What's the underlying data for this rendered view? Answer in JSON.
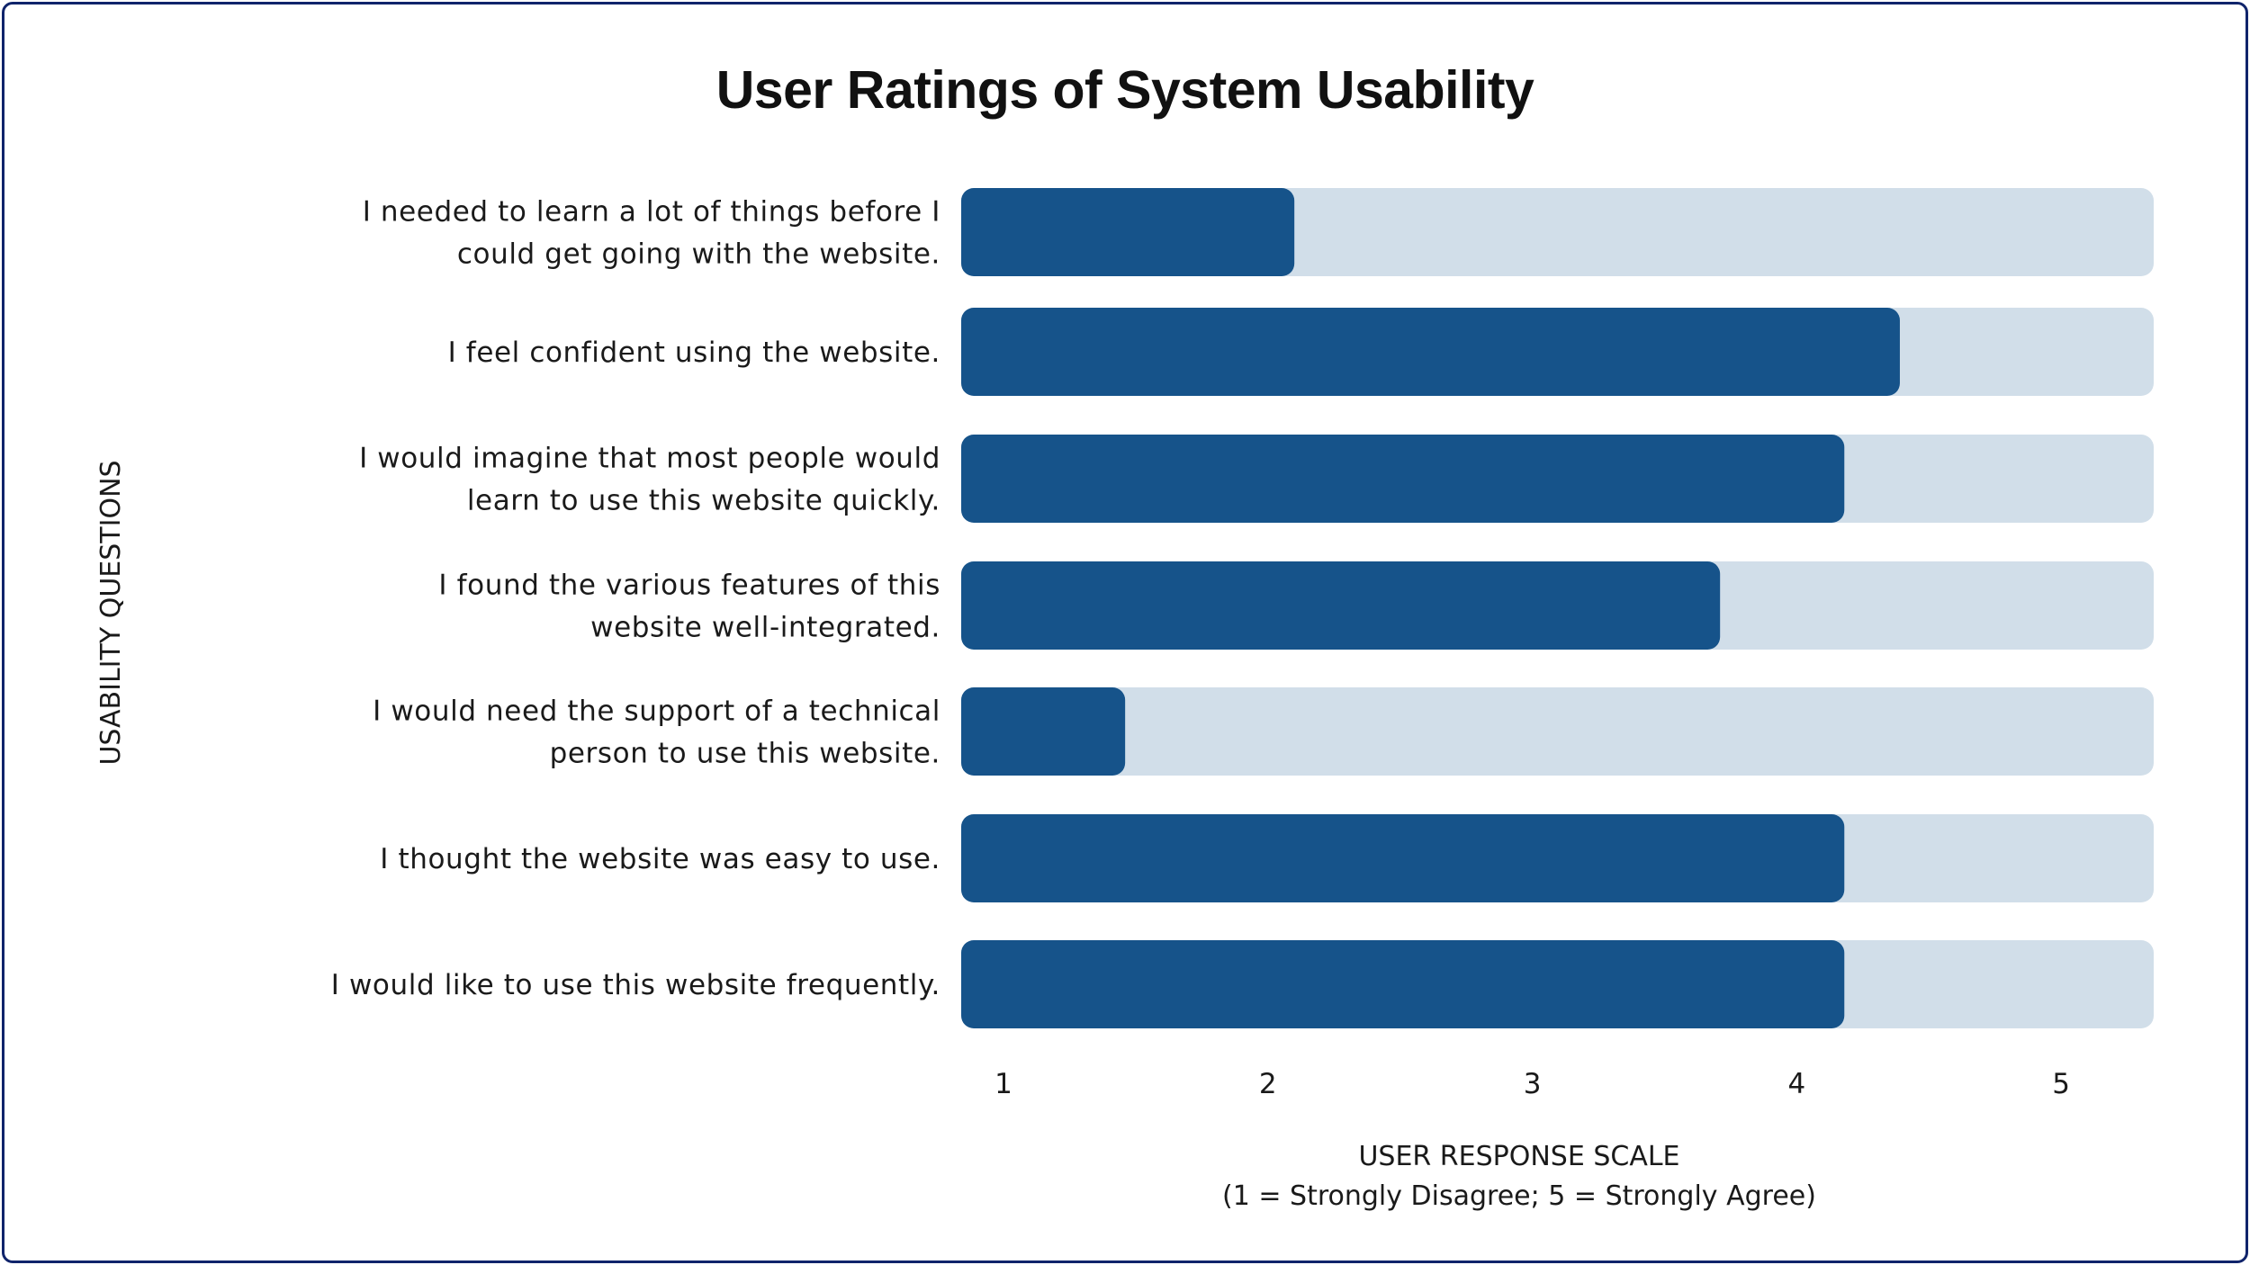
{
  "chart_data": {
    "type": "bar",
    "orientation": "horizontal",
    "title": "User Ratings of System Usability",
    "ylabel": "USABILITY QUESTIONS",
    "xlabel": "USER RESPONSE SCALE",
    "xlabel_sub": "(1 = Strongly Disagree; 5 = Strongly Agree)",
    "xlim": [
      0.84,
      5.35
    ],
    "xticks": [
      "1",
      "2",
      "3",
      "4",
      "5"
    ],
    "grid": false,
    "categories": [
      [
        "I needed to learn a lot of things before I",
        "could get going with the website."
      ],
      [
        "I feel confident using the website."
      ],
      [
        "I would imagine that most people would",
        "learn to use this website quickly."
      ],
      [
        "I found the various features of this",
        "website well-integrated."
      ],
      [
        "I would need the support of a technical",
        "person to use this website."
      ],
      [
        "I thought the website was easy to use."
      ],
      [
        "I would like to use this website frequently."
      ]
    ],
    "values": [
      2.1,
      4.39,
      4.18,
      3.71,
      1.46,
      4.18,
      4.18
    ],
    "colors": {
      "bar": "#16538a",
      "track": "#d1dee9"
    }
  }
}
